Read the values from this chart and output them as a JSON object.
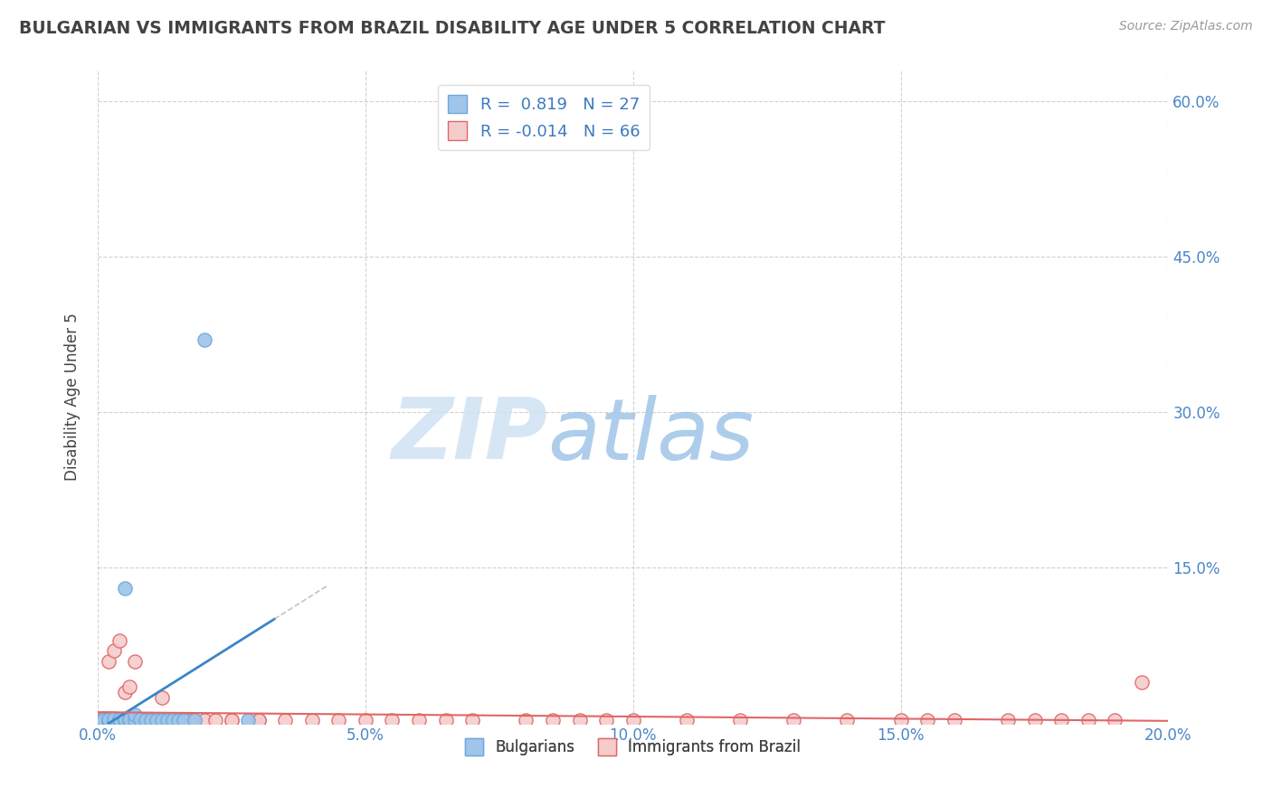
{
  "title": "BULGARIAN VS IMMIGRANTS FROM BRAZIL DISABILITY AGE UNDER 5 CORRELATION CHART",
  "source": "Source: ZipAtlas.com",
  "ylabel": "Disability Age Under 5",
  "xlabel": "",
  "xlim": [
    0.0,
    0.2
  ],
  "ylim": [
    0.0,
    0.63
  ],
  "xtick_labels": [
    "0.0%",
    "5.0%",
    "10.0%",
    "15.0%",
    "20.0%"
  ],
  "xtick_values": [
    0.0,
    0.05,
    0.1,
    0.15,
    0.2
  ],
  "ytick_labels": [
    "15.0%",
    "30.0%",
    "45.0%",
    "60.0%"
  ],
  "ytick_values": [
    0.15,
    0.3,
    0.45,
    0.6
  ],
  "R_blue": 0.819,
  "N_blue": 27,
  "R_pink": -0.014,
  "N_pink": 66,
  "blue_color": "#9fc5e8",
  "blue_edge_color": "#6fa8dc",
  "pink_color": "#f4cccc",
  "pink_edge_color": "#e06666",
  "blue_line_color": "#3d85c8",
  "pink_line_color": "#e06666",
  "legend_labels": [
    "Bulgarians",
    "Immigrants from Brazil"
  ],
  "blue_scatter_x": [
    0.001,
    0.001,
    0.002,
    0.002,
    0.003,
    0.003,
    0.004,
    0.004,
    0.005,
    0.005,
    0.005,
    0.006,
    0.006,
    0.007,
    0.007,
    0.008,
    0.009,
    0.01,
    0.011,
    0.012,
    0.013,
    0.014,
    0.015,
    0.016,
    0.018,
    0.02,
    0.028
  ],
  "blue_scatter_y": [
    0.002,
    0.003,
    0.002,
    0.004,
    0.003,
    0.005,
    0.003,
    0.004,
    0.003,
    0.004,
    0.13,
    0.003,
    0.004,
    0.003,
    0.008,
    0.004,
    0.003,
    0.003,
    0.003,
    0.003,
    0.003,
    0.003,
    0.003,
    0.003,
    0.003,
    0.37,
    0.003
  ],
  "pink_scatter_x": [
    0.001,
    0.001,
    0.001,
    0.001,
    0.002,
    0.002,
    0.002,
    0.002,
    0.003,
    0.003,
    0.003,
    0.003,
    0.004,
    0.004,
    0.004,
    0.005,
    0.005,
    0.005,
    0.006,
    0.006,
    0.007,
    0.007,
    0.007,
    0.008,
    0.008,
    0.009,
    0.01,
    0.011,
    0.012,
    0.013,
    0.015,
    0.016,
    0.017,
    0.018,
    0.02,
    0.022,
    0.025,
    0.025,
    0.03,
    0.03,
    0.035,
    0.04,
    0.045,
    0.05,
    0.055,
    0.06,
    0.065,
    0.07,
    0.08,
    0.085,
    0.09,
    0.095,
    0.1,
    0.11,
    0.12,
    0.13,
    0.14,
    0.15,
    0.155,
    0.16,
    0.17,
    0.175,
    0.18,
    0.185,
    0.19,
    0.195
  ],
  "pink_scatter_y": [
    0.002,
    0.003,
    0.004,
    0.005,
    0.002,
    0.003,
    0.005,
    0.06,
    0.002,
    0.003,
    0.004,
    0.07,
    0.002,
    0.003,
    0.08,
    0.002,
    0.003,
    0.03,
    0.002,
    0.035,
    0.003,
    0.004,
    0.06,
    0.003,
    0.004,
    0.003,
    0.003,
    0.003,
    0.025,
    0.003,
    0.003,
    0.003,
    0.003,
    0.003,
    0.003,
    0.003,
    0.003,
    0.003,
    0.003,
    0.003,
    0.003,
    0.003,
    0.003,
    0.003,
    0.003,
    0.003,
    0.003,
    0.003,
    0.003,
    0.003,
    0.003,
    0.003,
    0.003,
    0.003,
    0.003,
    0.003,
    0.003,
    0.003,
    0.003,
    0.003,
    0.003,
    0.003,
    0.003,
    0.003,
    0.003,
    0.04
  ],
  "background_color": "#ffffff",
  "grid_color": "#cccccc",
  "title_color": "#434343",
  "source_color": "#999999",
  "tick_color": "#4a86c8",
  "ylabel_color": "#434343",
  "watermark_zip_color": "#cfe2f3",
  "watermark_atlas_color": "#9fc5e8",
  "legend_text_color": "#3d7abf",
  "legend_box_color": "#3d85c8"
}
